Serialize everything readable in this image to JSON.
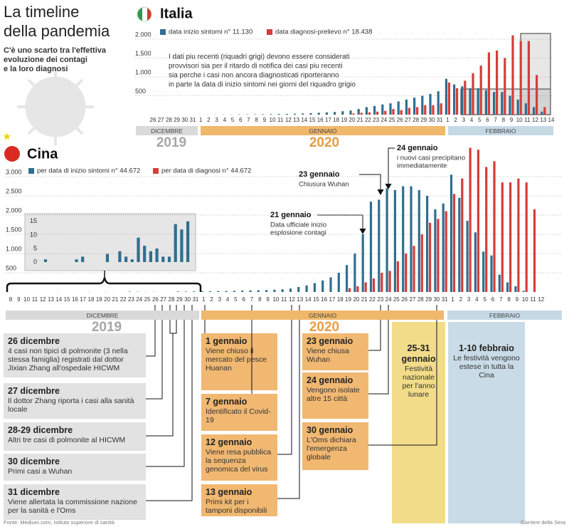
{
  "header": {
    "title": [
      "La timeline",
      "della pandemia"
    ],
    "subtitle": [
      "C'è uno scarto tra l'effettiva",
      "evoluzione dei contagi",
      "e la loro diagnosi"
    ]
  },
  "chart_data": [
    {
      "type": "bar",
      "title": "Italia",
      "categories": [
        "26",
        "27",
        "28",
        "29",
        "30",
        "31",
        "1",
        "2",
        "3",
        "4",
        "5",
        "6",
        "7",
        "8",
        "9",
        "10",
        "11",
        "12",
        "13",
        "14",
        "15",
        "16",
        "17",
        "18",
        "19",
        "20",
        "21",
        "22",
        "23",
        "24",
        "25",
        "26",
        "27",
        "28",
        "29",
        "30",
        "31",
        "1",
        "2",
        "3",
        "4",
        "5",
        "6",
        "7",
        "8",
        "9",
        "10",
        "11",
        "12",
        "13",
        "14"
      ],
      "series": [
        {
          "name": "data inizio sintomi n° 11.130",
          "color": "#2f6f8f",
          "values": [
            0,
            0,
            0,
            0,
            0,
            0,
            2,
            3,
            3,
            5,
            5,
            8,
            8,
            10,
            12,
            15,
            18,
            20,
            25,
            30,
            40,
            50,
            60,
            70,
            90,
            110,
            150,
            200,
            230,
            270,
            300,
            350,
            400,
            450,
            500,
            550,
            620,
            950,
            800,
            750,
            700,
            700,
            650,
            600,
            600,
            500,
            400,
            300,
            200,
            80,
            null
          ]
        },
        {
          "name": "data diagnosi-prelievo n° 18.438",
          "color": "#d63c3a",
          "values": [
            0,
            0,
            0,
            0,
            0,
            0,
            0,
            0,
            0,
            0,
            0,
            0,
            0,
            0,
            0,
            0,
            0,
            0,
            0,
            0,
            0,
            0,
            0,
            0,
            0,
            30,
            50,
            60,
            80,
            100,
            150,
            120,
            180,
            200,
            250,
            250,
            300,
            850,
            700,
            900,
            1100,
            1300,
            1650,
            1700,
            1500,
            2100,
            1950,
            1950,
            1050,
            200,
            null
          ]
        }
      ],
      "ylim": [
        0,
        2200
      ],
      "yticks": [
        500,
        {
          "value": 1000,
          "label": "1.000"
        },
        {
          "value": 1500,
          "label": "1.500"
        },
        {
          "value": 2000,
          "label": "2.000"
        }
      ],
      "grid": true,
      "months": [
        "DICEMBRE",
        "GENNAIO",
        "FEBBRAIO"
      ],
      "years": [
        "2019",
        "2020"
      ],
      "note": [
        "I dati piu recenti (riquadri grigi) devono essere considerati",
        "provvisori sia per il ritardo di notifica dei casi piu recenti",
        "sia perche i casi non ancora diagnosticati riporteranno",
        "in parte la data di inizio sintomi nei giorni del riquadro grigio"
      ]
    },
    {
      "type": "bar",
      "title": "Cina",
      "categories": [
        "8",
        "9",
        "10",
        "11",
        "12",
        "13",
        "14",
        "15",
        "16",
        "17",
        "18",
        "19",
        "20",
        "21",
        "22",
        "23",
        "24",
        "25",
        "26",
        "27",
        "28",
        "29",
        "30",
        "31",
        "1",
        "2",
        "3",
        "4",
        "5",
        "6",
        "7",
        "8",
        "9",
        "10",
        "11",
        "12",
        "13",
        "14",
        "15",
        "16",
        "17",
        "18",
        "19",
        "20",
        "21",
        "22",
        "23",
        "24",
        "25",
        "26",
        "27",
        "28",
        "29",
        "30",
        "31",
        "1",
        "2",
        "3",
        "4",
        "5",
        "6",
        "7",
        "8",
        "9",
        "10",
        "11",
        "12"
      ],
      "series": [
        {
          "name": "per data di inizio sintomi n° 44.672",
          "color": "#2f6f8f",
          "values": [
            1,
            0,
            0,
            0,
            0,
            1,
            2,
            0,
            0,
            0,
            3,
            0,
            4,
            2,
            1,
            9,
            6,
            4,
            5,
            2,
            2,
            14,
            12,
            15,
            20,
            20,
            25,
            25,
            30,
            35,
            40,
            45,
            50,
            60,
            70,
            90,
            130,
            170,
            230,
            300,
            380,
            500,
            700,
            1000,
            1500,
            2350,
            2400,
            2700,
            2650,
            2750,
            2750,
            2650,
            2500,
            2150,
            2300,
            3050,
            2450,
            1850,
            1550,
            1050,
            950,
            450,
            250,
            150,
            30,
            null,
            null
          ]
        },
        {
          "name": "per data di diagnosi n° 44.672",
          "color": "#d63c3a",
          "values": [
            0,
            0,
            0,
            0,
            0,
            0,
            0,
            0,
            0,
            0,
            0,
            0,
            0,
            0,
            0,
            0,
            0,
            0,
            0,
            0,
            0,
            0,
            0,
            0,
            0,
            0,
            0,
            0,
            0,
            0,
            0,
            0,
            0,
            0,
            0,
            0,
            0,
            0,
            0,
            0,
            0,
            0,
            100,
            150,
            250,
            350,
            500,
            550,
            800,
            1000,
            1200,
            1500,
            1800,
            1900,
            2100,
            2550,
            2950,
            3750,
            3700,
            3250,
            3400,
            2850,
            2850,
            2950,
            2850,
            2150,
            null
          ]
        }
      ],
      "ylim": [
        0,
        3800
      ],
      "yticks": [
        500,
        {
          "value": 1000,
          "label": "1.000"
        },
        {
          "value": 1500,
          "label": "1.500"
        },
        {
          "value": 2000,
          "label": "2.000"
        },
        {
          "value": 2500,
          "label": "2.500"
        },
        {
          "value": 3000,
          "label": "3.000"
        }
      ],
      "grid": true,
      "months": [
        "DICEMBRE",
        "GENNAIO",
        "FEBBRAIO"
      ],
      "years": [
        "2019",
        "2020"
      ],
      "annotations": [
        {
          "title": "21 gennaio",
          "text": [
            "Data ufficiale inizio",
            "esplosione contagi"
          ]
        },
        {
          "title": "23 gennaio",
          "text": [
            "Chiusura Wuhan"
          ]
        },
        {
          "title": "24 gennaio",
          "text": [
            "i nuovi casi precipitano",
            "immediatamente"
          ]
        }
      ]
    },
    {
      "type": "bar",
      "color": "#2f6f8f",
      "values": [
        1,
        0,
        0,
        0,
        0,
        1,
        2,
        0,
        0,
        0,
        3,
        0,
        4,
        2,
        1,
        9,
        6,
        4,
        5,
        2,
        2,
        14,
        12,
        15
      ],
      "ylim": [
        0,
        16
      ],
      "yticks": [
        0,
        5,
        10,
        15
      ]
    }
  ],
  "events": {
    "dicembre": [
      {
        "date": "26 dicembre",
        "text": "4 casi non tipici di polmonite (3 nella stessa famiglia) registrati dal dottor Jixian Zhang all'ospedale HICWM"
      },
      {
        "date": "27 dicembre",
        "text": "Il dottor Zhang riporta i casi alla sanità locale"
      },
      {
        "date": "28-29 dicembre",
        "text": "Altri tre casi di polmonite al  HICWM"
      },
      {
        "date": "30 dicembre",
        "text": "Primi casi a Wuhan"
      },
      {
        "date": "31 dicembre",
        "text": "Viene allertata la commissione nazione per la sanità e l'Oms"
      }
    ],
    "gennaio": [
      {
        "date": "1 gennaio",
        "text": "Viene chiuso il mercato del pesce Huanan"
      },
      {
        "date": "7 gennaio",
        "text": "Identificato il Covid-19"
      },
      {
        "date": "12 gennaio",
        "text": "Viene resa pubblica la sequenza genomica del virus"
      },
      {
        "date": "13 gennaio",
        "text": "Primi kit per i tamponi disponibili"
      },
      {
        "date": "23 gennaio",
        "text": "Viene chiusa Wuhan"
      },
      {
        "date": "24 gennaio",
        "text": "Vengono isolate altre 15 città"
      },
      {
        "date": "30 gennaio",
        "text": "L'Oms dichiara l'emergenza globale"
      }
    ],
    "festivita": [
      {
        "date": "25-31 gennaio",
        "text": "Festività nazionale per l'anno lunare"
      },
      {
        "date": "1-10 febbraio",
        "text": "Le festività vengono estese in tutta la Cina"
      }
    ]
  },
  "footer": {
    "source": "Fonte: Medium.com, Istituto superiore di sanità",
    "credit": "Corriere della Sera"
  }
}
